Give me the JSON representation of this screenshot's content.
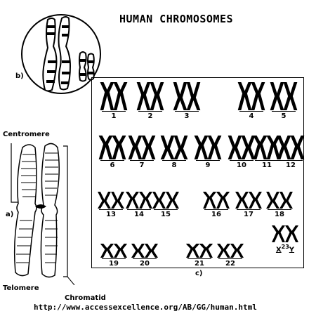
{
  "title": "HUMAN CHROMOSOMES",
  "labels": {
    "centromere": "Centromere",
    "telomere": "Telomere",
    "chromatid": "Chromatid",
    "fig_a": "a)",
    "fig_b": "b)",
    "fig_c": "c)"
  },
  "url": "http://www.accessexcellence.org/AB/GG/human.html",
  "karyotype": {
    "rows": [
      [
        "1",
        "2",
        "3",
        "4",
        "5"
      ],
      [
        "6",
        "7",
        "8",
        "9",
        "10",
        "11",
        "12"
      ],
      [
        "13",
        "14",
        "15",
        "16",
        "17",
        "18"
      ],
      [
        "19",
        "20",
        "21",
        "22"
      ]
    ],
    "sex_chromosomes": {
      "x": "X",
      "number": "23",
      "y": "Y"
    }
  }
}
